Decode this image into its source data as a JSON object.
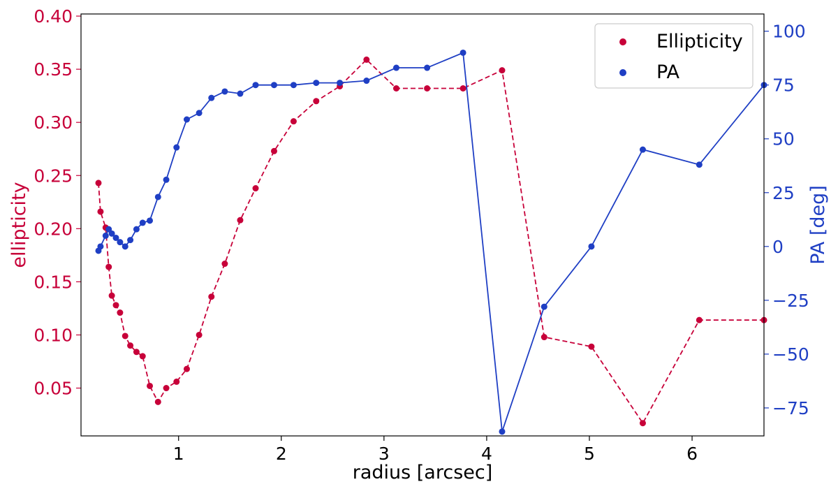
{
  "chart_data": {
    "type": "line",
    "xlabel": "radius [arcsec]",
    "ylabel_left": "ellipticity",
    "ylabel_right": "PA [deg]",
    "xlim": [
      0.05,
      6.7
    ],
    "ylim_left": [
      0.005,
      0.402
    ],
    "ylim_right": [
      -88,
      108
    ],
    "xticks": [
      1,
      2,
      3,
      4,
      5,
      6
    ],
    "yticks_left": [
      "0.05",
      "0.10",
      "0.15",
      "0.20",
      "0.25",
      "0.30",
      "0.35",
      "0.40"
    ],
    "yticks_right": [
      "−75",
      "−50",
      "−25",
      "0",
      "25",
      "50",
      "75",
      "100"
    ],
    "legend_position": "top-right",
    "colors": {
      "ellipticity": "#c70039",
      "pa": "#1f3fc4"
    },
    "series": [
      {
        "name": "Ellipticity",
        "axis": "left",
        "style": "dashed",
        "x": [
          0.22,
          0.24,
          0.29,
          0.32,
          0.35,
          0.39,
          0.43,
          0.48,
          0.53,
          0.59,
          0.65,
          0.72,
          0.8,
          0.88,
          0.98,
          1.08,
          1.2,
          1.32,
          1.45,
          1.6,
          1.75,
          1.93,
          2.12,
          2.34,
          2.57,
          2.83,
          3.12,
          3.42,
          3.77,
          4.15,
          4.56,
          5.02,
          5.52,
          6.07,
          6.7
        ],
        "y": [
          0.243,
          0.216,
          0.201,
          0.164,
          0.137,
          0.128,
          0.121,
          0.099,
          0.09,
          0.084,
          0.08,
          0.052,
          0.037,
          0.05,
          0.056,
          0.068,
          0.1,
          0.136,
          0.167,
          0.208,
          0.238,
          0.273,
          0.301,
          0.32,
          0.334,
          0.359,
          0.332,
          0.332,
          0.332,
          0.349,
          0.098,
          0.089,
          0.017,
          0.114,
          0.114
        ]
      },
      {
        "name": "PA",
        "axis": "right",
        "style": "solid",
        "x": [
          0.22,
          0.24,
          0.29,
          0.32,
          0.35,
          0.39,
          0.43,
          0.48,
          0.53,
          0.59,
          0.65,
          0.72,
          0.8,
          0.88,
          0.98,
          1.08,
          1.2,
          1.32,
          1.45,
          1.6,
          1.75,
          1.93,
          2.12,
          2.34,
          2.57,
          2.83,
          3.12,
          3.42,
          3.77,
          4.15,
          4.56,
          5.02,
          5.52,
          6.07,
          6.7
        ],
        "y": [
          -2,
          0,
          5,
          8,
          6,
          4,
          2,
          0,
          3,
          8,
          11,
          12,
          23,
          31,
          46,
          59,
          62,
          69,
          72,
          71,
          75,
          75,
          75,
          76,
          76,
          77,
          83,
          83,
          90,
          -86,
          -28,
          0,
          45,
          38,
          75
        ]
      }
    ]
  }
}
